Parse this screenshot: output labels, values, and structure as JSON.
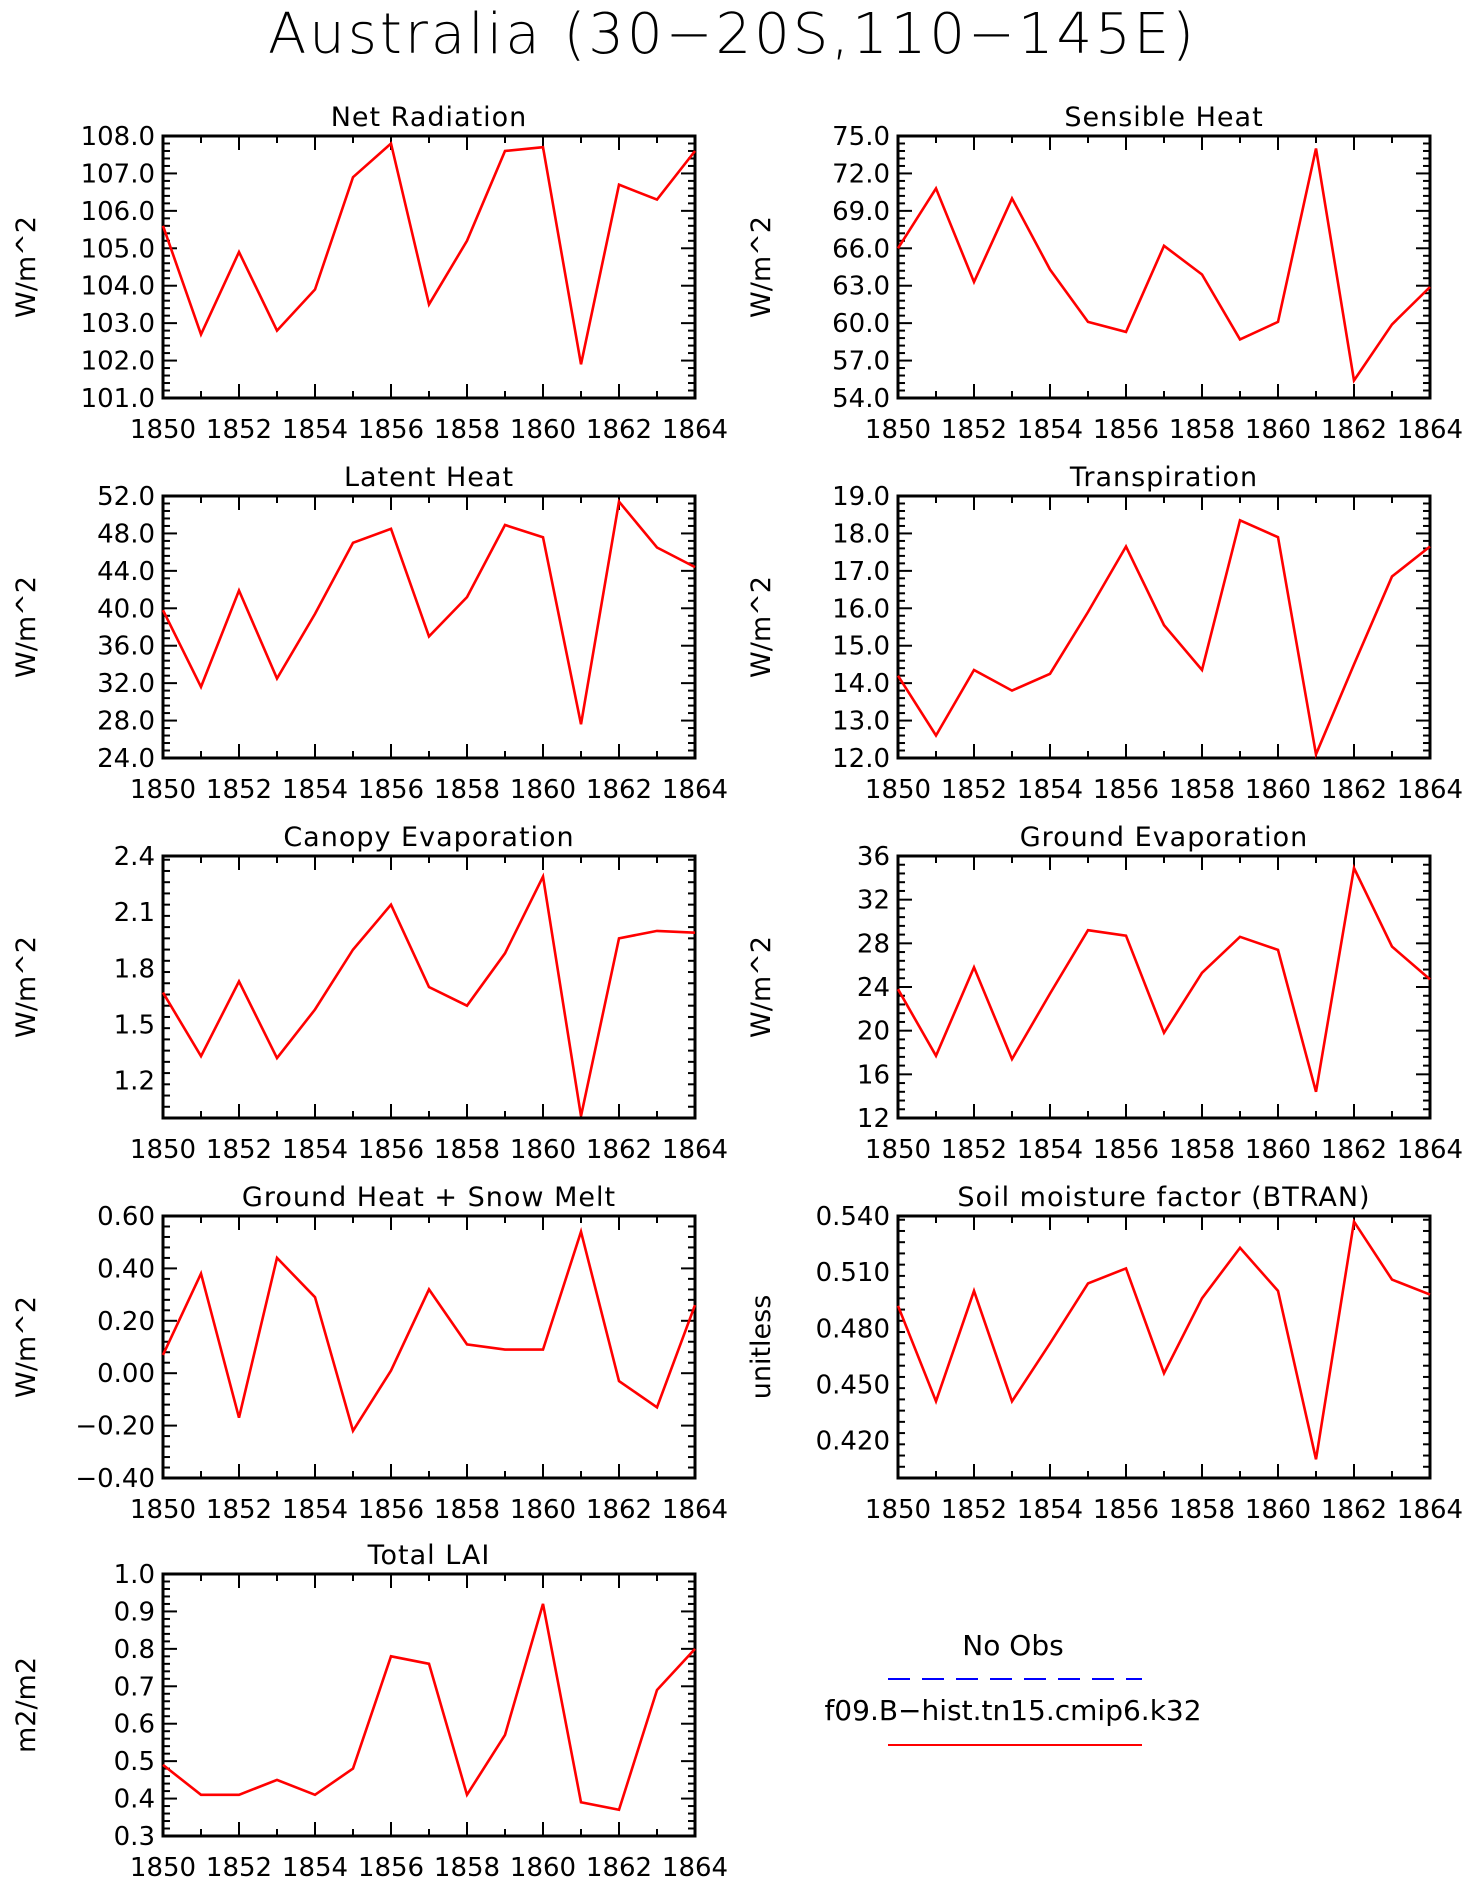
{
  "title": "Australia (30−20S,110−145E)",
  "colors": {
    "model": "#ff0000",
    "obs": "#0000ff",
    "axis": "#000000"
  },
  "legend": {
    "obs_label": "No Obs",
    "model_label": "f09.B−hist.tn15.cmip6.k32"
  },
  "chart_data": [
    {
      "type": "line",
      "title": "Net Radiation",
      "ylabel": "W/m^2",
      "x": [
        1850,
        1851,
        1852,
        1853,
        1854,
        1855,
        1856,
        1857,
        1858,
        1859,
        1860,
        1861,
        1862,
        1863,
        1864
      ],
      "xlim": [
        1850,
        1864
      ],
      "ylim": [
        101.0,
        108.0
      ],
      "xticks": [
        1850,
        1852,
        1854,
        1856,
        1858,
        1860,
        1862,
        1864
      ],
      "yticks": [
        "101.0",
        "102.0",
        "103.0",
        "104.0",
        "105.0",
        "106.0",
        "107.0",
        "108.0"
      ],
      "series": [
        {
          "values": [
            105.6,
            102.7,
            104.9,
            102.8,
            103.9,
            106.9,
            107.8,
            103.5,
            105.2,
            107.6,
            107.7,
            101.9,
            106.7,
            106.3,
            107.6
          ]
        }
      ]
    },
    {
      "type": "line",
      "title": "Sensible Heat",
      "ylabel": "W/m^2",
      "x": [
        1850,
        1851,
        1852,
        1853,
        1854,
        1855,
        1856,
        1857,
        1858,
        1859,
        1860,
        1861,
        1862,
        1863,
        1864
      ],
      "xlim": [
        1850,
        1864
      ],
      "ylim": [
        54.0,
        75.0
      ],
      "xticks": [
        1850,
        1852,
        1854,
        1856,
        1858,
        1860,
        1862,
        1864
      ],
      "yticks": [
        "54.0",
        "57.0",
        "60.0",
        "63.0",
        "66.0",
        "69.0",
        "72.0",
        "75.0"
      ],
      "series": [
        {
          "values": [
            66.0,
            70.8,
            63.3,
            70.0,
            64.3,
            60.1,
            59.3,
            66.2,
            63.9,
            58.7,
            60.1,
            74.0,
            55.4,
            59.9,
            62.9
          ]
        }
      ]
    },
    {
      "type": "line",
      "title": "Latent Heat",
      "ylabel": "W/m^2",
      "x": [
        1850,
        1851,
        1852,
        1853,
        1854,
        1855,
        1856,
        1857,
        1858,
        1859,
        1860,
        1861,
        1862,
        1863,
        1864
      ],
      "xlim": [
        1850,
        1864
      ],
      "ylim": [
        24.0,
        52.0
      ],
      "xticks": [
        1850,
        1852,
        1854,
        1856,
        1858,
        1860,
        1862,
        1864
      ],
      "yticks": [
        "24.0",
        "28.0",
        "32.0",
        "36.0",
        "40.0",
        "44.0",
        "48.0",
        "52.0"
      ],
      "series": [
        {
          "values": [
            39.8,
            31.6,
            41.9,
            32.5,
            39.4,
            47.0,
            48.5,
            37.0,
            41.2,
            48.9,
            47.6,
            27.6,
            51.4,
            46.5,
            44.4
          ]
        }
      ]
    },
    {
      "type": "line",
      "title": "Transpiration",
      "ylabel": "W/m^2",
      "x": [
        1850,
        1851,
        1852,
        1853,
        1854,
        1855,
        1856,
        1857,
        1858,
        1859,
        1860,
        1861,
        1862,
        1863,
        1864
      ],
      "xlim": [
        1850,
        1864
      ],
      "ylim": [
        12.0,
        19.0
      ],
      "xticks": [
        1850,
        1852,
        1854,
        1856,
        1858,
        1860,
        1862,
        1864
      ],
      "yticks": [
        "12.0",
        "13.0",
        "14.0",
        "15.0",
        "16.0",
        "17.0",
        "18.0",
        "19.0"
      ],
      "series": [
        {
          "values": [
            14.2,
            12.6,
            14.35,
            13.8,
            14.25,
            15.9,
            17.65,
            15.55,
            14.35,
            18.35,
            17.9,
            12.1,
            14.5,
            16.85,
            17.65
          ]
        }
      ]
    },
    {
      "type": "line",
      "title": "Canopy Evaporation",
      "ylabel": "W/m^2",
      "x": [
        1850,
        1851,
        1852,
        1853,
        1854,
        1855,
        1856,
        1857,
        1858,
        1859,
        1860,
        1861,
        1862,
        1863,
        1864
      ],
      "xlim": [
        1850,
        1864
      ],
      "ylim": [
        1.0,
        2.4
      ],
      "xticks": [
        1850,
        1852,
        1854,
        1856,
        1858,
        1860,
        1862,
        1864
      ],
      "yticks": [
        "1.2",
        "1.5",
        "1.8",
        "2.1",
        "2.4"
      ],
      "series": [
        {
          "values": [
            1.67,
            1.33,
            1.73,
            1.32,
            1.58,
            1.9,
            2.14,
            1.7,
            1.6,
            1.88,
            2.29,
            1.01,
            1.96,
            2.0,
            1.99
          ]
        }
      ]
    },
    {
      "type": "line",
      "title": "Ground Evaporation",
      "ylabel": "W/m^2",
      "x": [
        1850,
        1851,
        1852,
        1853,
        1854,
        1855,
        1856,
        1857,
        1858,
        1859,
        1860,
        1861,
        1862,
        1863,
        1864
      ],
      "xlim": [
        1850,
        1864
      ],
      "ylim": [
        12,
        36
      ],
      "xticks": [
        1850,
        1852,
        1854,
        1856,
        1858,
        1860,
        1862,
        1864
      ],
      "yticks": [
        "12",
        "16",
        "20",
        "24",
        "28",
        "32",
        "36"
      ],
      "series": [
        {
          "values": [
            23.8,
            17.7,
            25.8,
            17.4,
            23.4,
            29.2,
            28.7,
            19.8,
            25.3,
            28.6,
            27.4,
            14.4,
            34.9,
            27.7,
            24.7
          ]
        }
      ]
    },
    {
      "type": "line",
      "title": "Ground Heat + Snow Melt",
      "ylabel": "W/m^2",
      "x": [
        1850,
        1851,
        1852,
        1853,
        1854,
        1855,
        1856,
        1857,
        1858,
        1859,
        1860,
        1861,
        1862,
        1863,
        1864
      ],
      "xlim": [
        1850,
        1864
      ],
      "ylim": [
        -0.4,
        0.6
      ],
      "xticks": [
        1850,
        1852,
        1854,
        1856,
        1858,
        1860,
        1862,
        1864
      ],
      "yticks": [
        "−0.40",
        "−0.20",
        "0.00",
        "0.20",
        "0.40",
        "0.60"
      ],
      "series": [
        {
          "values": [
            0.07,
            0.38,
            -0.17,
            0.44,
            0.29,
            -0.22,
            0.01,
            0.32,
            0.11,
            0.09,
            0.09,
            0.54,
            -0.03,
            -0.13,
            0.26
          ]
        }
      ]
    },
    {
      "type": "line",
      "title": "Soil moisture factor (BTRAN)",
      "ylabel": "unitless",
      "x": [
        1850,
        1851,
        1852,
        1853,
        1854,
        1855,
        1856,
        1857,
        1858,
        1859,
        1860,
        1861,
        1862,
        1863,
        1864
      ],
      "xlim": [
        1850,
        1864
      ],
      "ylim": [
        0.4,
        0.54
      ],
      "xticks": [
        1850,
        1852,
        1854,
        1856,
        1858,
        1860,
        1862,
        1864
      ],
      "yticks": [
        "0.420",
        "0.450",
        "0.480",
        "0.510",
        "0.540"
      ],
      "series": [
        {
          "values": [
            0.492,
            0.441,
            0.5,
            0.441,
            0.472,
            0.504,
            0.512,
            0.456,
            0.496,
            0.523,
            0.5,
            0.41,
            0.537,
            0.506,
            0.498
          ]
        }
      ]
    },
    {
      "type": "line",
      "title": "Total LAI",
      "ylabel": "m2/m2",
      "x": [
        1850,
        1851,
        1852,
        1853,
        1854,
        1855,
        1856,
        1857,
        1858,
        1859,
        1860,
        1861,
        1862,
        1863,
        1864
      ],
      "xlim": [
        1850,
        1864
      ],
      "ylim": [
        0.3,
        1.0
      ],
      "xticks": [
        1850,
        1852,
        1854,
        1856,
        1858,
        1860,
        1862,
        1864
      ],
      "yticks": [
        "0.3",
        "0.4",
        "0.5",
        "0.6",
        "0.7",
        "0.8",
        "0.9",
        "1.0"
      ],
      "series": [
        {
          "values": [
            0.49,
            0.41,
            0.41,
            0.45,
            0.41,
            0.48,
            0.78,
            0.76,
            0.41,
            0.57,
            0.92,
            0.39,
            0.37,
            0.69,
            0.8
          ]
        }
      ]
    }
  ]
}
